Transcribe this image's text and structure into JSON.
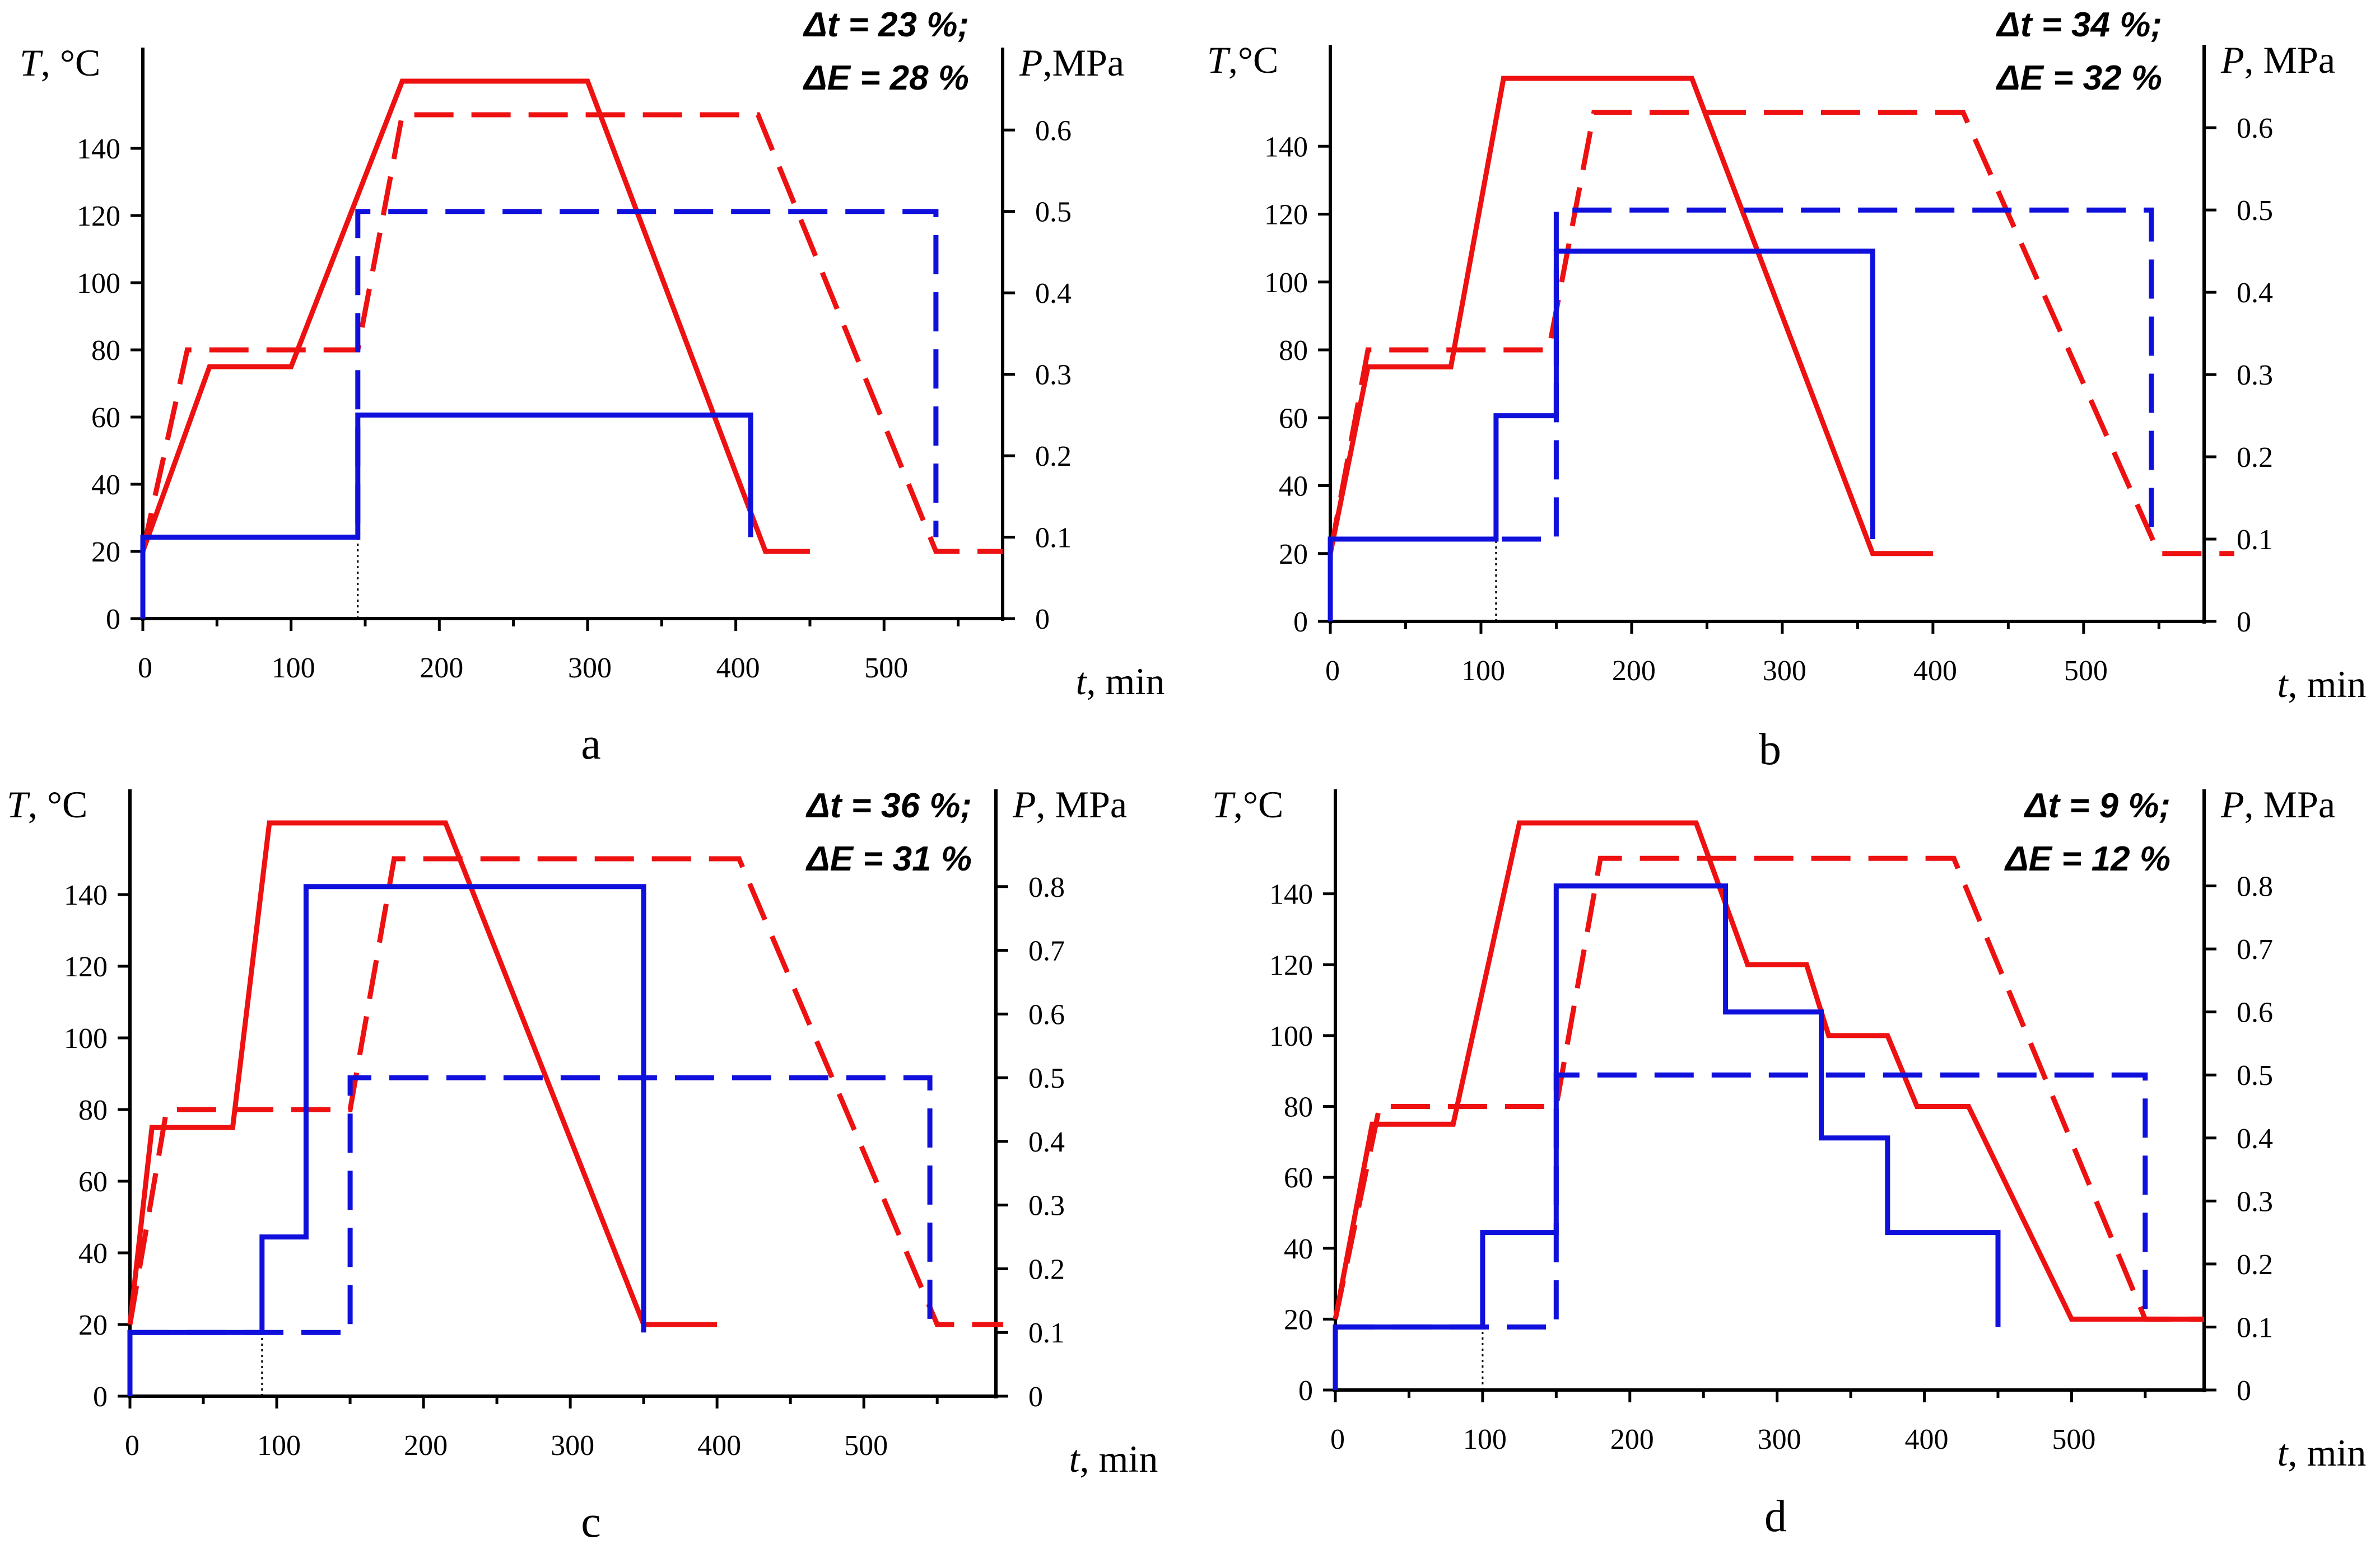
{
  "colors": {
    "temperature": "#ee1111",
    "pressure": "#1010dd",
    "axis": "#000000"
  },
  "chart_data": [
    {
      "panel": "a",
      "type": "line",
      "annotation_line1": "Δt = 23 %;",
      "annotation_line2": "ΔE = 28 %",
      "xlabel_symbol": "t",
      "xlabel_unit": ", min",
      "ylabel_left_symbol": "T",
      "ylabel_left_unit": ", °C",
      "ylabel_right_symbol": "P",
      "ylabel_right_unit": ",MPa",
      "xlim": [
        0,
        580
      ],
      "ylim_left": [
        0,
        160
      ],
      "ylim_right": [
        0,
        0.66
      ],
      "x_ticks": [
        0,
        100,
        200,
        300,
        400,
        500
      ],
      "y_left_ticks": [
        0,
        20,
        40,
        60,
        80,
        100,
        120,
        140
      ],
      "y_right_ticks": [
        0,
        0.1,
        0.2,
        0.3,
        0.4,
        0.5,
        0.6
      ],
      "x_tick_labels": [
        "0",
        "100",
        "200",
        "300",
        "400",
        "500"
      ],
      "y_left_tick_labels": [
        "0",
        "20",
        "40",
        "60",
        "80",
        "100",
        "120",
        "140"
      ],
      "y_right_tick_labels": [
        "0",
        "0.1",
        "0.2",
        "0.3",
        "0.4",
        "0.5",
        "0.6"
      ],
      "guide_x": 145,
      "series": [
        {
          "name": "T-solid",
          "axis": "left",
          "color": "temperature",
          "dash": false,
          "points": [
            [
              0,
              20
            ],
            [
              45,
              75
            ],
            [
              100,
              75
            ],
            [
              175,
              160
            ],
            [
              300,
              160
            ],
            [
              420,
              20
            ],
            [
              450,
              20
            ]
          ]
        },
        {
          "name": "T-dashed",
          "axis": "left",
          "color": "temperature",
          "dash": true,
          "points": [
            [
              0,
              20
            ],
            [
              30,
              80
            ],
            [
              145,
              80
            ],
            [
              175,
              150
            ],
            [
              415,
              150
            ],
            [
              535,
              20
            ],
            [
              580,
              20
            ]
          ]
        },
        {
          "name": "P-solid",
          "axis": "right",
          "color": "pressure",
          "dash": false,
          "points": [
            [
              0,
              0
            ],
            [
              0,
              0.1
            ],
            [
              145,
              0.1
            ],
            [
              145,
              0.25
            ],
            [
              410,
              0.25
            ],
            [
              410,
              0.1
            ]
          ]
        },
        {
          "name": "P-dashed",
          "axis": "right",
          "color": "pressure",
          "dash": true,
          "points": [
            [
              0,
              0.1
            ],
            [
              145,
              0.1
            ],
            [
              145,
              0.5
            ],
            [
              535,
              0.5
            ],
            [
              535,
              0.1
            ]
          ]
        }
      ]
    },
    {
      "panel": "b",
      "type": "line",
      "annotation_line1": "Δt = 34 %;",
      "annotation_line2": "ΔE = 32 %",
      "xlabel_symbol": "t",
      "xlabel_unit": ", min",
      "ylabel_left_symbol": "T",
      "ylabel_left_unit": ",°C",
      "ylabel_right_symbol": "P",
      "ylabel_right_unit": ", MPa",
      "xlim": [
        0,
        580
      ],
      "ylim_left": [
        0,
        160
      ],
      "ylim_right": [
        0,
        0.66
      ],
      "x_ticks": [
        0,
        100,
        200,
        300,
        400,
        500
      ],
      "y_left_ticks": [
        0,
        20,
        40,
        60,
        80,
        100,
        120,
        140
      ],
      "y_right_ticks": [
        0,
        0.1,
        0.2,
        0.3,
        0.4,
        0.5,
        0.6
      ],
      "x_tick_labels": [
        "0",
        "100",
        "200",
        "300",
        "400",
        "500"
      ],
      "y_left_tick_labels": [
        "0",
        "20",
        "40",
        "60",
        "80",
        "100",
        "120",
        "140"
      ],
      "y_right_tick_labels": [
        "0",
        "0.1",
        "0.2",
        "0.3",
        "0.4",
        "0.5",
        "0.6"
      ],
      "guide_x": 110,
      "series": [
        {
          "name": "T-solid",
          "axis": "left",
          "color": "temperature",
          "dash": false,
          "points": [
            [
              0,
              20
            ],
            [
              25,
              75
            ],
            [
              80,
              75
            ],
            [
              115,
              160
            ],
            [
              240,
              160
            ],
            [
              360,
              20
            ],
            [
              400,
              20
            ]
          ]
        },
        {
          "name": "T-dashed",
          "axis": "left",
          "color": "temperature",
          "dash": true,
          "points": [
            [
              0,
              20
            ],
            [
              25,
              80
            ],
            [
              145,
              80
            ],
            [
              175,
              150
            ],
            [
              420,
              150
            ],
            [
              550,
              20
            ],
            [
              600,
              20
            ]
          ]
        },
        {
          "name": "P-solid",
          "axis": "right",
          "color": "pressure",
          "dash": false,
          "points": [
            [
              0,
              0
            ],
            [
              0,
              0.1
            ],
            [
              110,
              0.1
            ],
            [
              110,
              0.25
            ],
            [
              150,
              0.25
            ],
            [
              150,
              0.45
            ],
            [
              360,
              0.45
            ],
            [
              360,
              0.1
            ]
          ]
        },
        {
          "name": "P-dashed",
          "axis": "right",
          "color": "pressure",
          "dash": true,
          "points": [
            [
              0,
              0.1
            ],
            [
              150,
              0.1
            ],
            [
              150,
              0.5
            ],
            [
              545,
              0.5
            ],
            [
              545,
              0.1
            ]
          ]
        }
      ]
    },
    {
      "panel": "c",
      "type": "line",
      "annotation_line1": "Δt = 36 %;",
      "annotation_line2": "ΔE = 31 %",
      "xlabel_symbol": "t",
      "xlabel_unit": ", min",
      "ylabel_left_symbol": "T",
      "ylabel_left_unit": ", °C",
      "ylabel_right_symbol": "P",
      "ylabel_right_unit": ", MPa",
      "xlim": [
        0,
        590
      ],
      "ylim_left": [
        0,
        160
      ],
      "ylim_right": [
        0,
        0.9
      ],
      "x_ticks": [
        0,
        100,
        200,
        300,
        400,
        500
      ],
      "y_left_ticks": [
        0,
        20,
        40,
        60,
        80,
        100,
        120,
        140
      ],
      "y_right_ticks": [
        0,
        0.1,
        0.2,
        0.3,
        0.4,
        0.5,
        0.6,
        0.7,
        0.8
      ],
      "x_tick_labels": [
        "0",
        "100",
        "200",
        "300",
        "400",
        "500"
      ],
      "y_left_tick_labels": [
        "0",
        "20",
        "40",
        "60",
        "80",
        "100",
        "120",
        "140"
      ],
      "y_right_tick_labels": [
        "0",
        "0.1",
        "0.2",
        "0.3",
        "0.4",
        "0.5",
        "0.6",
        "0.7",
        "0.8"
      ],
      "guide_x": 90,
      "series": [
        {
          "name": "T-solid",
          "axis": "left",
          "color": "temperature",
          "dash": false,
          "points": [
            [
              0,
              20
            ],
            [
              15,
              75
            ],
            [
              70,
              75
            ],
            [
              95,
              160
            ],
            [
              215,
              160
            ],
            [
              350,
              20
            ],
            [
              400,
              20
            ]
          ]
        },
        {
          "name": "T-dashed",
          "axis": "left",
          "color": "temperature",
          "dash": true,
          "points": [
            [
              0,
              20
            ],
            [
              25,
              80
            ],
            [
              150,
              80
            ],
            [
              180,
              150
            ],
            [
              415,
              150
            ],
            [
              550,
              20
            ],
            [
              595,
              20
            ]
          ]
        },
        {
          "name": "P-solid",
          "axis": "right",
          "color": "pressure",
          "dash": false,
          "points": [
            [
              0,
              0
            ],
            [
              0,
              0.1
            ],
            [
              90,
              0.1
            ],
            [
              90,
              0.25
            ],
            [
              120,
              0.25
            ],
            [
              120,
              0.8
            ],
            [
              350,
              0.8
            ],
            [
              350,
              0.1
            ]
          ]
        },
        {
          "name": "P-dashed",
          "axis": "right",
          "color": "pressure",
          "dash": true,
          "points": [
            [
              0,
              0.1
            ],
            [
              150,
              0.1
            ],
            [
              150,
              0.5
            ],
            [
              545,
              0.5
            ],
            [
              545,
              0.1
            ]
          ]
        }
      ]
    },
    {
      "panel": "d",
      "type": "line",
      "annotation_line1": "Δt = 9 %;",
      "annotation_line2": "ΔE = 12 %",
      "xlabel_symbol": "t",
      "xlabel_unit": ", min",
      "ylabel_left_symbol": "T",
      "ylabel_left_unit": ",°C",
      "ylabel_right_symbol": "P",
      "ylabel_right_unit": ", MPa",
      "xlim": [
        0,
        590
      ],
      "ylim_left": [
        0,
        160
      ],
      "ylim_right": [
        0,
        0.9
      ],
      "x_ticks": [
        0,
        100,
        200,
        300,
        400,
        500
      ],
      "y_left_ticks": [
        0,
        20,
        40,
        60,
        80,
        100,
        120,
        140
      ],
      "y_right_ticks": [
        0,
        0.1,
        0.2,
        0.3,
        0.4,
        0.5,
        0.6,
        0.7,
        0.8
      ],
      "x_tick_labels": [
        "0",
        "100",
        "200",
        "300",
        "400",
        "500"
      ],
      "y_left_tick_labels": [
        "0",
        "20",
        "40",
        "60",
        "80",
        "100",
        "120",
        "140"
      ],
      "y_right_tick_labels": [
        "0",
        "0.1",
        "0.2",
        "0.3",
        "0.4",
        "0.5",
        "0.6",
        "0.7",
        "0.8"
      ],
      "guide_x": 100,
      "series": [
        {
          "name": "T-solid",
          "axis": "left",
          "color": "temperature",
          "dash": false,
          "points": [
            [
              0,
              20
            ],
            [
              25,
              75
            ],
            [
              80,
              75
            ],
            [
              125,
              160
            ],
            [
              245,
              160
            ],
            [
              280,
              120
            ],
            [
              320,
              120
            ],
            [
              335,
              100
            ],
            [
              375,
              100
            ],
            [
              395,
              80
            ],
            [
              430,
              80
            ],
            [
              500,
              20
            ],
            [
              590,
              20
            ]
          ]
        },
        {
          "name": "T-dashed",
          "axis": "left",
          "color": "temperature",
          "dash": true,
          "points": [
            [
              0,
              20
            ],
            [
              30,
              80
            ],
            [
              150,
              80
            ],
            [
              180,
              150
            ],
            [
              420,
              150
            ],
            [
              550,
              20
            ],
            [
              590,
              20
            ]
          ]
        },
        {
          "name": "P-solid",
          "axis": "right",
          "color": "pressure",
          "dash": false,
          "points": [
            [
              0,
              0
            ],
            [
              0,
              0.1
            ],
            [
              100,
              0.1
            ],
            [
              100,
              0.25
            ],
            [
              150,
              0.25
            ],
            [
              150,
              0.8
            ],
            [
              265,
              0.8
            ],
            [
              265,
              0.6
            ],
            [
              330,
              0.6
            ],
            [
              330,
              0.4
            ],
            [
              375,
              0.4
            ],
            [
              375,
              0.25
            ],
            [
              450,
              0.25
            ],
            [
              450,
              0.1
            ]
          ]
        },
        {
          "name": "P-dashed",
          "axis": "right",
          "color": "pressure",
          "dash": true,
          "points": [
            [
              0,
              0.1
            ],
            [
              150,
              0.1
            ],
            [
              150,
              0.5
            ],
            [
              550,
              0.5
            ],
            [
              550,
              0.1
            ]
          ]
        }
      ]
    }
  ]
}
